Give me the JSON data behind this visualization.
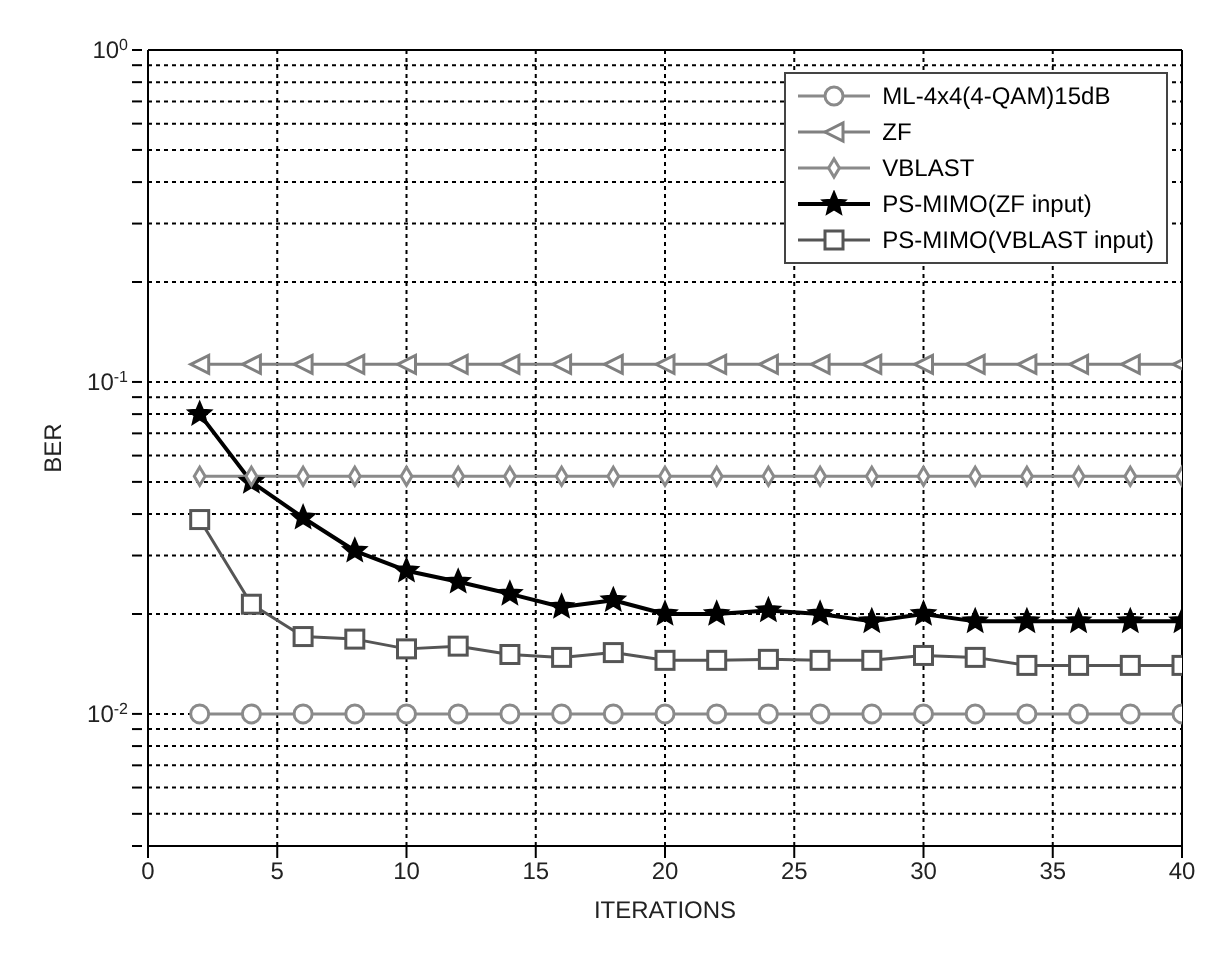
{
  "chart_data": {
    "type": "line",
    "xlabel": "ITERATIONS",
    "ylabel": "BER",
    "log": "y",
    "grid": true,
    "legend": "top right",
    "line_style": "solid",
    "x": [
      2,
      4,
      6,
      8,
      10,
      12,
      14,
      16,
      18,
      20,
      22,
      24,
      26,
      28,
      30,
      32,
      34,
      36,
      38,
      40
    ],
    "xlim": [
      0,
      40
    ],
    "xticks": [
      0,
      5,
      10,
      15,
      20,
      25,
      30,
      35,
      40
    ],
    "ylim": [
      0.004,
      1
    ],
    "yticks": [
      {
        "value": 0.004,
        "label": null
      },
      {
        "value": 0.005,
        "label": null
      },
      {
        "value": 0.006,
        "label": null
      },
      {
        "value": 0.007,
        "label": null
      },
      {
        "value": 0.008,
        "label": null
      },
      {
        "value": 0.009,
        "label": null
      },
      {
        "value": 0.01,
        "label": "10$^{-2}$"
      },
      {
        "value": 0.02,
        "label": null
      },
      {
        "value": 0.03,
        "label": null
      },
      {
        "value": 0.04,
        "label": null
      },
      {
        "value": 0.05,
        "label": null
      },
      {
        "value": 0.06,
        "label": null
      },
      {
        "value": 0.07,
        "label": null
      },
      {
        "value": 0.08,
        "label": null
      },
      {
        "value": 0.09,
        "label": null
      },
      {
        "value": 0.1,
        "label": "10$^{-1}$"
      },
      {
        "value": 0.2,
        "label": null
      },
      {
        "value": 0.3,
        "label": null
      },
      {
        "value": 0.4,
        "label": null
      },
      {
        "value": 0.5,
        "label": null
      },
      {
        "value": 0.6,
        "label": null
      },
      {
        "value": 0.7,
        "label": null
      },
      {
        "value": 0.8,
        "label": null
      },
      {
        "value": 0.9,
        "label": null
      },
      {
        "value": 1,
        "label": "10$^{0}$"
      }
    ],
    "series": [
      {
        "name": "ML-4x4(4-QAM)15dB",
        "color": "#8a8a8a",
        "marker": "circle",
        "values": [
          0.01,
          0.01,
          0.01,
          0.01,
          0.01,
          0.01,
          0.01,
          0.01,
          0.01,
          0.01,
          0.01,
          0.01,
          0.01,
          0.01,
          0.01,
          0.01,
          0.01,
          0.01,
          0.01,
          0.01
        ]
      },
      {
        "name": "ZF",
        "color": "#808080",
        "marker": "triangle",
        "values": [
          0.113,
          0.113,
          0.113,
          0.113,
          0.113,
          0.113,
          0.113,
          0.113,
          0.113,
          0.113,
          0.113,
          0.113,
          0.113,
          0.113,
          0.113,
          0.113,
          0.113,
          0.113,
          0.113,
          0.113
        ]
      },
      {
        "name": "VBLAST",
        "color": "#8a8a8a",
        "marker": "diamond",
        "values": [
          0.052,
          0.052,
          0.052,
          0.052,
          0.052,
          0.052,
          0.052,
          0.052,
          0.052,
          0.052,
          0.052,
          0.052,
          0.052,
          0.052,
          0.052,
          0.052,
          0.052,
          0.052,
          0.052,
          0.052
        ]
      },
      {
        "name": "PS-MIMO(ZF input)",
        "color": "#000000",
        "marker": "star",
        "values": [
          0.08,
          0.05,
          0.039,
          0.031,
          0.027,
          0.025,
          0.023,
          0.021,
          0.022,
          0.02,
          0.02,
          0.0205,
          0.02,
          0.019,
          0.02,
          0.019,
          0.019,
          0.019,
          0.019,
          0.019
        ]
      },
      {
        "name": "PS-MIMO(VBLAST input)",
        "color": "#555555",
        "marker": "square",
        "values": [
          0.0385,
          0.0214,
          0.0171,
          0.0168,
          0.0157,
          0.016,
          0.0151,
          0.0148,
          0.0153,
          0.0145,
          0.0145,
          0.0146,
          0.0145,
          0.0145,
          0.015,
          0.0148,
          0.014,
          0.014,
          0.014,
          0.014
        ]
      }
    ]
  }
}
